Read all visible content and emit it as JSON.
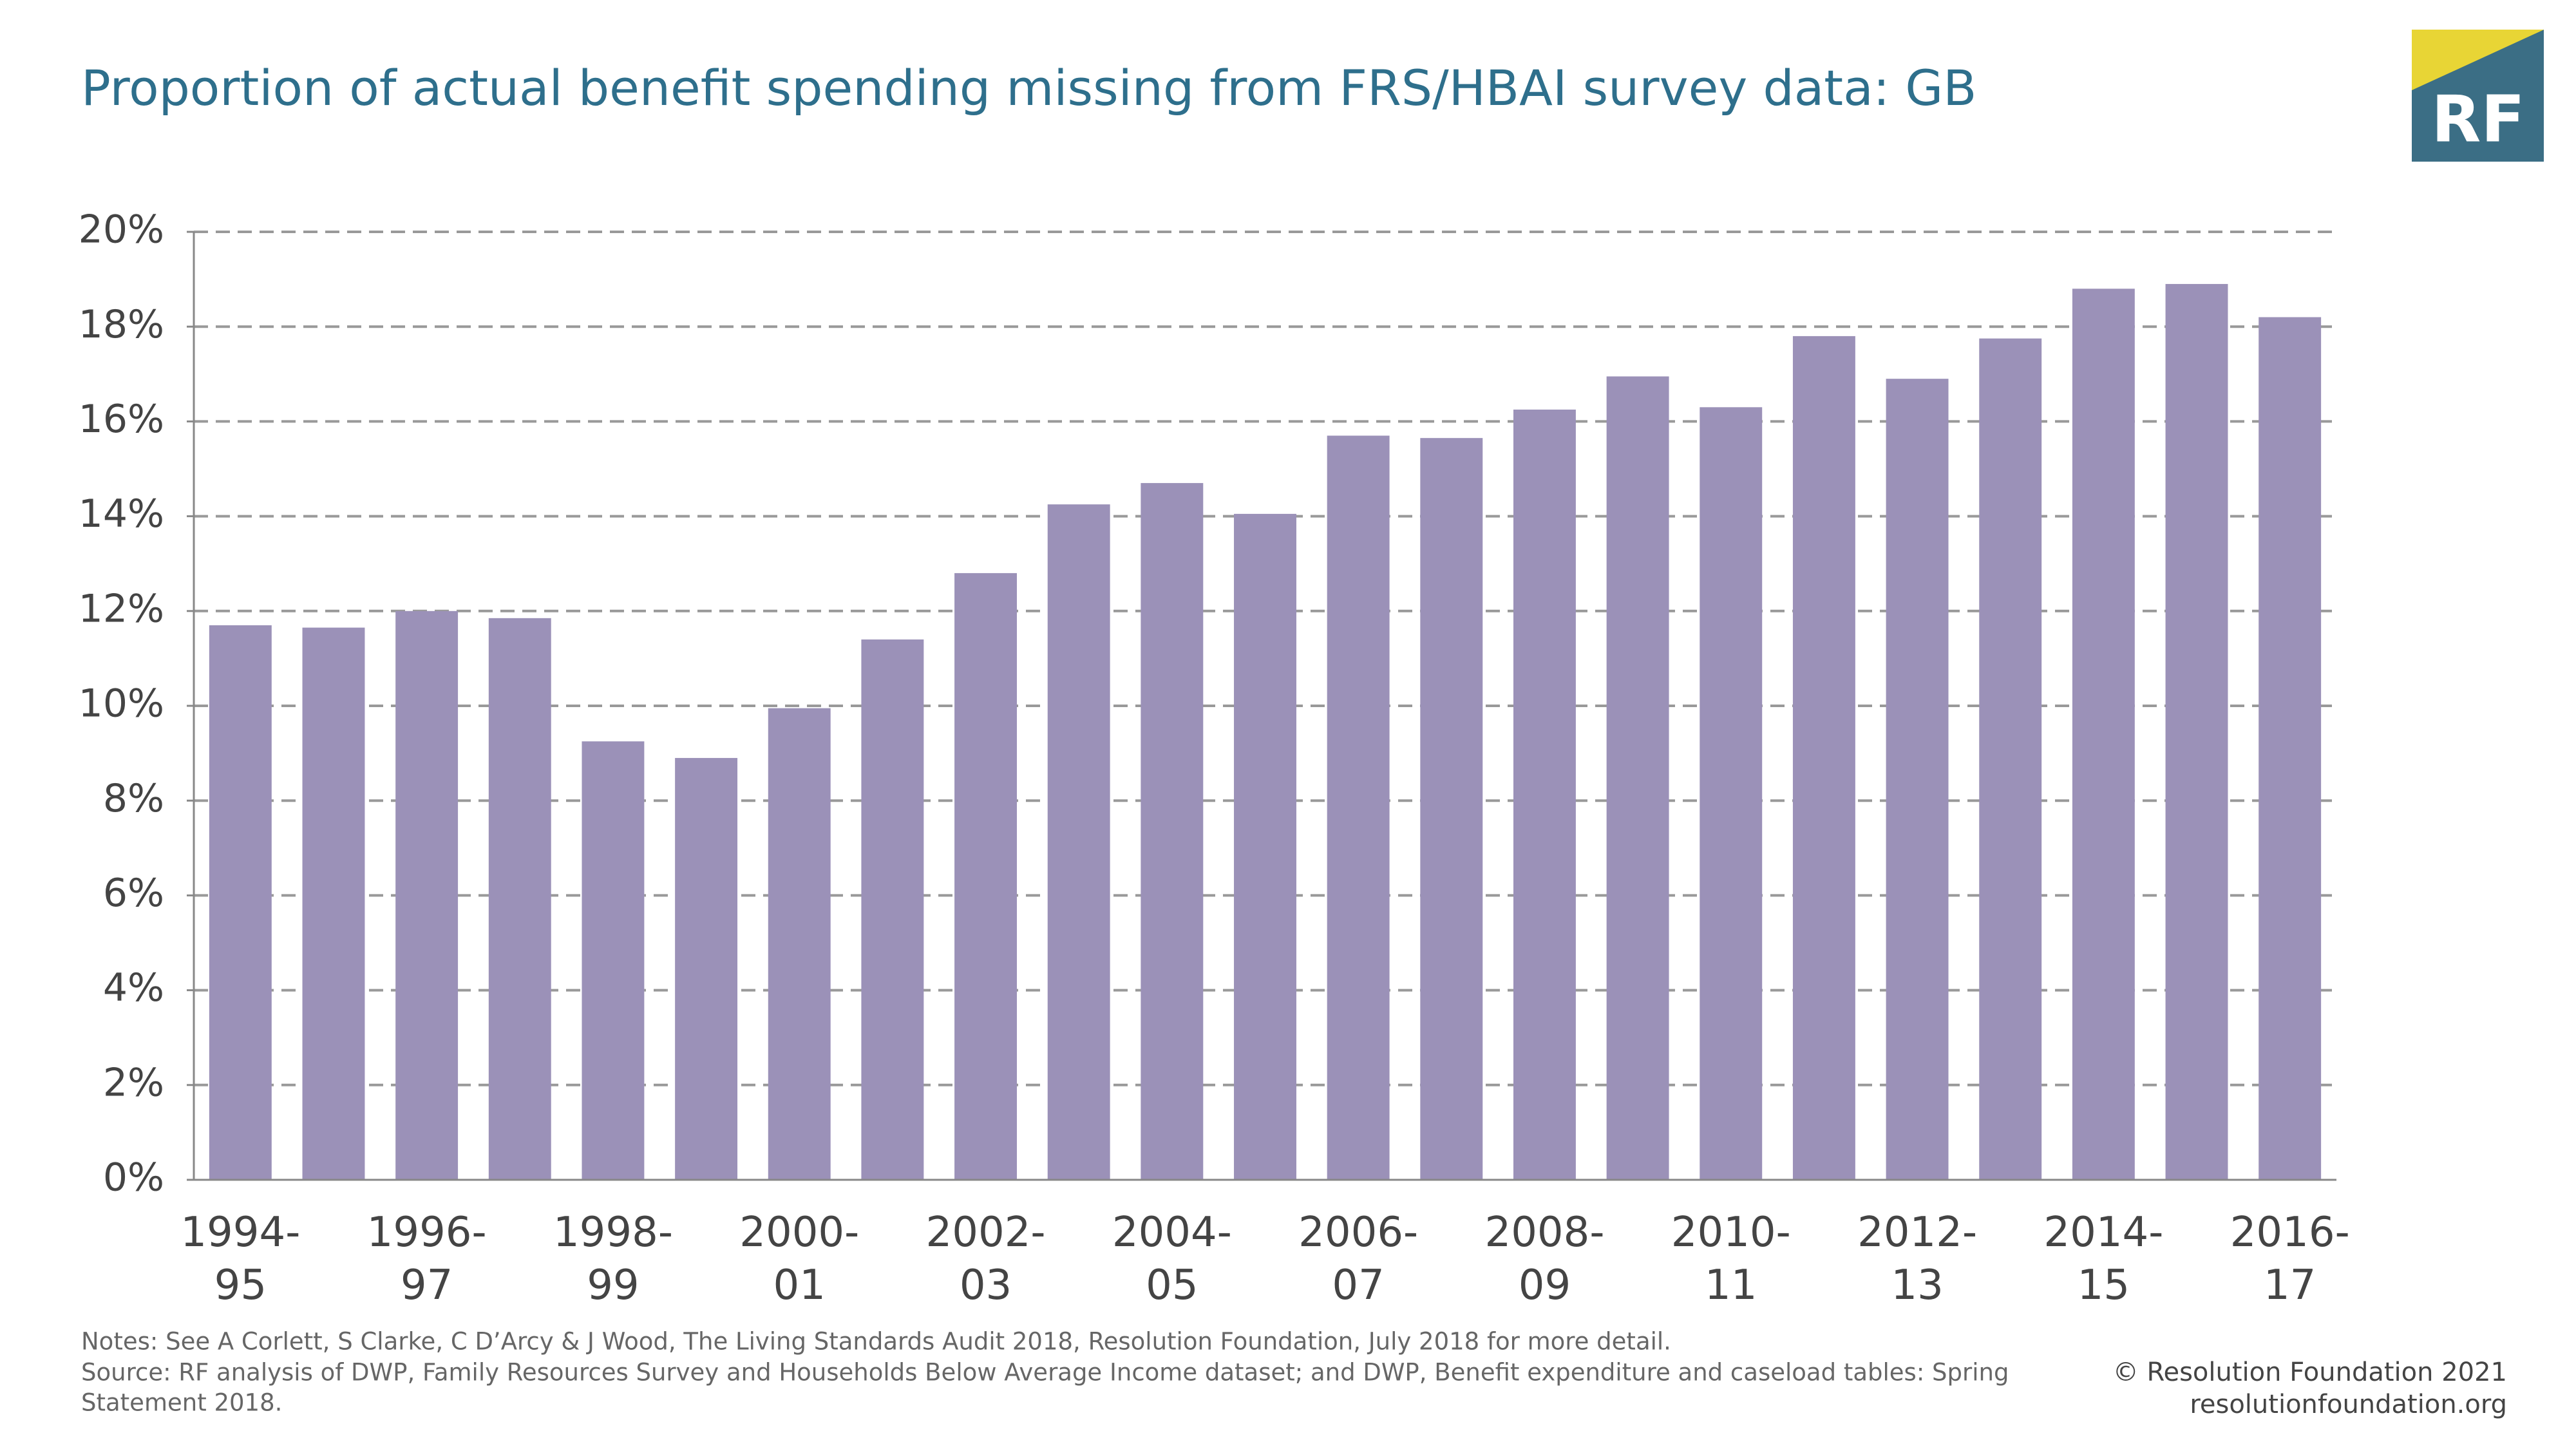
{
  "chart_data": {
    "type": "bar",
    "title": "Proportion of actual benefit spending missing from FRS/HBAI survey data: GB",
    "categories": [
      "1994-95",
      null,
      "1996-97",
      null,
      "1998-99",
      null,
      "2000-01",
      null,
      "2002-03",
      null,
      "2004-05",
      null,
      "2006-07",
      null,
      "2008-09",
      null,
      "2010-11",
      null,
      "2012-13",
      null,
      "2014-15",
      null,
      "2016-17"
    ],
    "values": [
      11.7,
      11.65,
      12.0,
      11.85,
      9.25,
      8.9,
      9.95,
      11.4,
      12.8,
      14.25,
      14.7,
      14.05,
      15.7,
      15.65,
      16.25,
      16.95,
      16.3,
      17.8,
      16.9,
      17.75,
      18.8,
      18.9,
      18.2
    ],
    "color": "#9b91b8",
    "ylim": [
      0,
      20
    ],
    "yticks": [
      {
        "value": 0,
        "label": "0%"
      },
      {
        "value": 2,
        "label": "2%"
      },
      {
        "value": 4,
        "label": "4%"
      },
      {
        "value": 6,
        "label": "6%"
      },
      {
        "value": 8,
        "label": "8%"
      },
      {
        "value": 10,
        "label": "10%"
      },
      {
        "value": 12,
        "label": "12%"
      },
      {
        "value": 14,
        "label": "14%"
      },
      {
        "value": 16,
        "label": "16%"
      },
      {
        "value": 18,
        "label": "18%"
      },
      {
        "value": 20,
        "label": "20%"
      }
    ],
    "grid": true
  },
  "notes": "Notes: See A Corlett, S Clarke, C D’Arcy & J Wood, The Living Standards Audit 2018, Resolution Foundation, July 2018 for more detail.",
  "source": [
    "Source: RF analysis of DWP, Family Resources Survey and Households Below Average Income dataset; and DWP, Benefit expenditure and caseload tables: Spring",
    "Statement 2018."
  ],
  "copyright": "© Resolution Foundation 2021",
  "website": "resolutionfoundation.org",
  "logo": "RF"
}
